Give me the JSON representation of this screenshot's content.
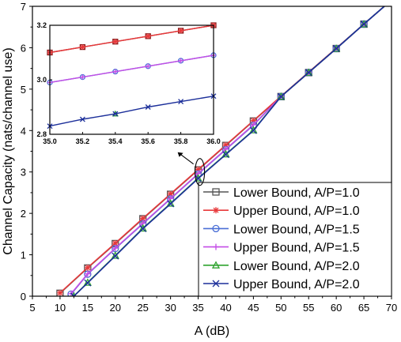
{
  "chart_data": [
    {
      "type": "line",
      "title": "",
      "xlabel": "A (dB)",
      "ylabel": "Channel Capacity (nats/channel use)",
      "xlim": [
        5,
        70
      ],
      "ylim": [
        0,
        7
      ],
      "xticks": [
        5,
        10,
        15,
        20,
        25,
        30,
        35,
        40,
        45,
        50,
        55,
        60,
        65,
        70
      ],
      "yticks": [
        0,
        1,
        2,
        3,
        4,
        5,
        6,
        7
      ],
      "grid": false,
      "legend_position": "bottom-right",
      "series": [
        {
          "name": "Lower Bound, A/P=1.0",
          "color": "#555555",
          "marker": "square",
          "x": [
            10,
            15,
            20,
            25,
            30,
            35,
            40,
            45,
            50,
            55,
            60,
            65,
            70
          ],
          "y": [
            0.07,
            0.68,
            1.27,
            1.87,
            2.46,
            3.05,
            3.64,
            4.23,
            4.82,
            5.4,
            5.98,
            6.57,
            7.15
          ]
        },
        {
          "name": "Upper Bound, A/P=1.0",
          "color": "#e8393b",
          "marker": "asterisk",
          "x": [
            10,
            15,
            20,
            25,
            30,
            35,
            40,
            45,
            50,
            55,
            60,
            65,
            70
          ],
          "y": [
            0.08,
            0.69,
            1.28,
            1.88,
            2.47,
            3.06,
            3.65,
            4.24,
            4.83,
            5.41,
            5.99,
            6.57,
            7.15
          ]
        },
        {
          "name": "Lower Bound, A/P=1.5",
          "color": "#4a6fd6",
          "marker": "circle",
          "x": [
            12,
            15,
            20,
            25,
            30,
            35,
            40,
            45,
            50,
            55,
            60,
            65,
            70
          ],
          "y": [
            0.05,
            0.53,
            1.15,
            1.75,
            2.35,
            2.95,
            3.54,
            4.13,
            4.82,
            5.4,
            5.98,
            6.57,
            7.15
          ]
        },
        {
          "name": "Upper Bound, A/P=1.5",
          "color": "#c44ee6",
          "marker": "plus",
          "x": [
            12,
            15,
            20,
            25,
            30,
            35,
            40,
            45,
            50,
            55,
            60,
            65,
            70
          ],
          "y": [
            0.06,
            0.54,
            1.16,
            1.76,
            2.36,
            2.96,
            3.55,
            4.14,
            4.82,
            5.4,
            5.98,
            6.57,
            7.15
          ]
        },
        {
          "name": "Lower Bound, A/P=2.0",
          "color": "#2ea32e",
          "marker": "triangle",
          "x": [
            12.5,
            15,
            20,
            25,
            30,
            35,
            40,
            45,
            50,
            55,
            60,
            65,
            70
          ],
          "y": [
            0.0,
            0.33,
            0.98,
            1.64,
            2.24,
            2.85,
            3.43,
            4.01,
            4.82,
            5.4,
            5.98,
            6.57,
            7.15
          ]
        },
        {
          "name": "Upper Bound, A/P=2.0",
          "color": "#1c2f9a",
          "marker": "x",
          "x": [
            12.5,
            15,
            20,
            25,
            30,
            35,
            40,
            45,
            50,
            55,
            60,
            65,
            70
          ],
          "y": [
            0.0,
            0.32,
            0.97,
            1.63,
            2.23,
            2.84,
            3.42,
            4.0,
            4.82,
            5.4,
            5.98,
            6.57,
            7.15
          ]
        }
      ]
    },
    {
      "type": "line",
      "title": "",
      "xlabel": "",
      "ylabel": "",
      "xlim": [
        35.0,
        36.0
      ],
      "ylim": [
        2.8,
        3.2
      ],
      "xticks": [
        "35.0",
        "35.2",
        "35.4",
        "35.6",
        "35.8",
        "36.0"
      ],
      "yticks": [
        "2.8",
        "3.0",
        "3.2"
      ],
      "series": [
        {
          "color": "#8b1a1a",
          "marker": "square",
          "x": [
            35.0,
            35.2,
            35.4,
            35.6,
            35.8,
            36.0
          ],
          "y": [
            3.1,
            3.12,
            3.14,
            3.16,
            3.18,
            3.2
          ]
        },
        {
          "color": "#e8393b",
          "marker": "asterisk",
          "x": [
            35.0,
            35.2,
            35.4,
            35.6,
            35.8,
            36.0
          ],
          "y": [
            3.1,
            3.12,
            3.14,
            3.16,
            3.18,
            3.2
          ]
        },
        {
          "color": "#4a6fd6",
          "marker": "circle",
          "x": [
            35.0,
            35.2,
            35.4,
            35.6,
            35.8,
            36.0
          ],
          "y": [
            2.99,
            3.01,
            3.03,
            3.05,
            3.07,
            3.09
          ]
        },
        {
          "color": "#c44ee6",
          "marker": "plus",
          "x": [
            35.0,
            35.2,
            35.4,
            35.6,
            35.8,
            36.0
          ],
          "y": [
            2.99,
            3.01,
            3.03,
            3.05,
            3.07,
            3.09
          ]
        },
        {
          "color": "#2ea32e",
          "marker": "triangle",
          "x": [
            35.4
          ],
          "y": [
            2.875
          ]
        },
        {
          "color": "#1c2f9a",
          "marker": "x",
          "x": [
            35.0,
            35.2,
            35.4,
            35.6,
            35.8,
            36.0
          ],
          "y": [
            2.83,
            2.855,
            2.875,
            2.9,
            2.92,
            2.94
          ]
        }
      ]
    }
  ]
}
